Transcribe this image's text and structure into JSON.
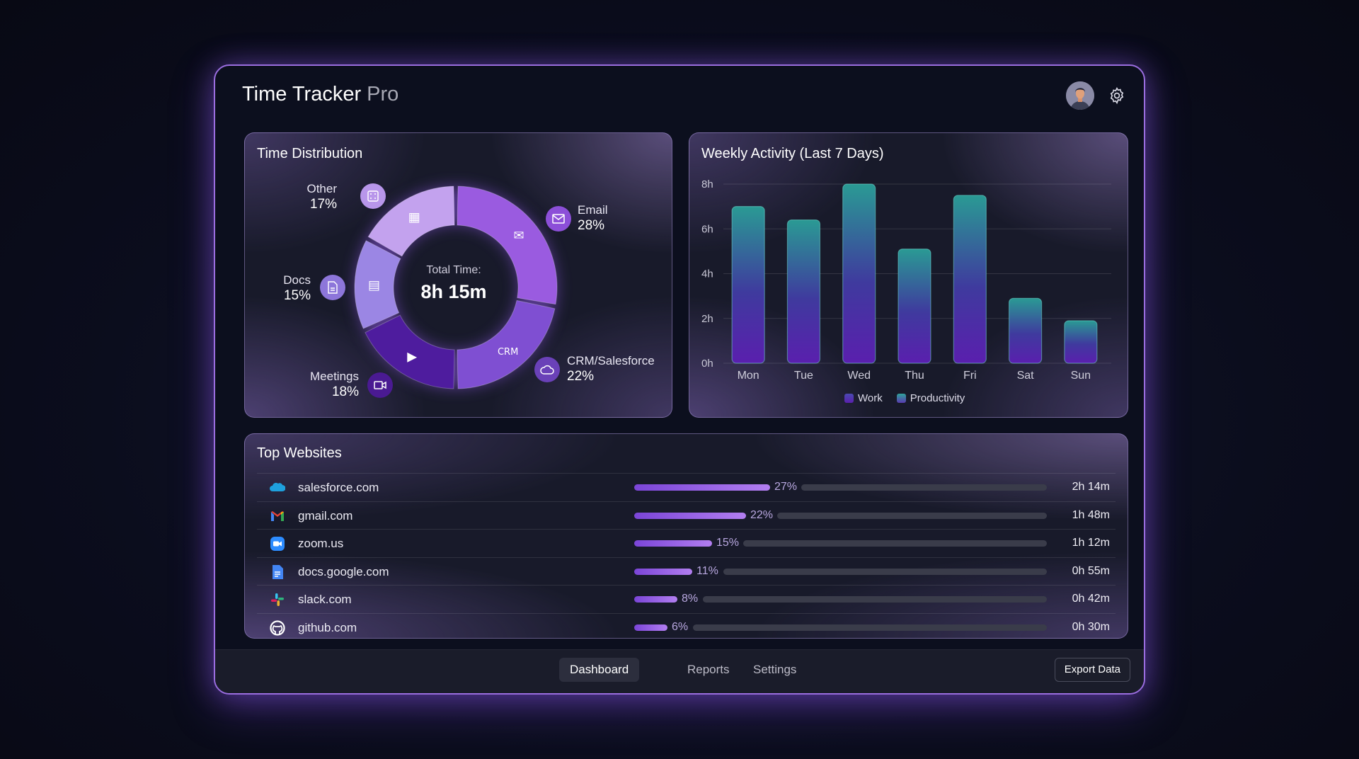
{
  "app": {
    "title_main": "Time Tracker",
    "title_suffix": "Pro"
  },
  "header": {
    "avatar_icon": "user-avatar",
    "settings_icon": "gear-icon"
  },
  "time_distribution": {
    "title": "Time Distribution",
    "center_label": "Total Time:",
    "center_value": "8h 15m",
    "segments": [
      {
        "name": "Email",
        "percent": 28,
        "label": "28%",
        "color": "#9a5be0",
        "icon": "envelope-icon"
      },
      {
        "name": "CRM/Salesforce",
        "percent": 22,
        "label": "22%",
        "color": "#7f4fd2",
        "icon": "cloud-icon",
        "inner_icon_text": "CRM"
      },
      {
        "name": "Meetings",
        "percent": 18,
        "label": "18%",
        "color": "#4e1c9e",
        "icon": "video-camera-icon"
      },
      {
        "name": "Docs",
        "percent": 15,
        "label": "15%",
        "color": "#9b86e4",
        "icon": "document-icon"
      },
      {
        "name": "Other",
        "percent": 17,
        "label": "17%",
        "color": "#c3a2ee",
        "icon": "grid-icon"
      }
    ]
  },
  "chart_data": {
    "type": "bar",
    "title": "Weekly Activity (Last 7 Days)",
    "categories": [
      "Mon",
      "Tue",
      "Wed",
      "Thu",
      "Fri",
      "Sat",
      "Sun"
    ],
    "values": [
      7.0,
      6.4,
      8.0,
      5.1,
      7.5,
      2.9,
      1.9
    ],
    "ylim": [
      0,
      8
    ],
    "yticks": [
      "0h",
      "2h",
      "4h",
      "6h",
      "8h"
    ],
    "grid": true,
    "legend": {
      "position": "bottom",
      "entries": [
        {
          "name": "Work",
          "color": "#5b2bb0"
        },
        {
          "name": "Productivity",
          "color": "#2fa39a"
        }
      ]
    },
    "colors": {
      "top": "#2a9a94",
      "bottom": "#5a1fae"
    }
  },
  "top_websites": {
    "title": "Top Websites",
    "rows": [
      {
        "site": "salesforce.com",
        "percent": 27,
        "percent_label": "27%",
        "time": "2h 14m",
        "icon": "salesforce-icon"
      },
      {
        "site": "gmail.com",
        "percent": 22,
        "percent_label": "22%",
        "time": "1h 48m",
        "icon": "gmail-icon"
      },
      {
        "site": "zoom.us",
        "percent": 15,
        "percent_label": "15%",
        "time": "1h 12m",
        "icon": "zoom-icon"
      },
      {
        "site": "docs.google.com",
        "percent": 11,
        "percent_label": "11%",
        "time": "0h 55m",
        "icon": "google-docs-icon"
      },
      {
        "site": "slack.com",
        "percent": 8,
        "percent_label": "8%",
        "time": "0h 42m",
        "icon": "slack-icon"
      },
      {
        "site": "github.com",
        "percent": 6,
        "percent_label": "6%",
        "time": "0h 30m",
        "icon": "github-icon"
      }
    ]
  },
  "footer": {
    "tabs": [
      {
        "label": "Dashboard",
        "active": true
      },
      {
        "label": "Reports",
        "active": false
      },
      {
        "label": "Settings",
        "active": false
      }
    ],
    "export_label": "Export Data"
  }
}
